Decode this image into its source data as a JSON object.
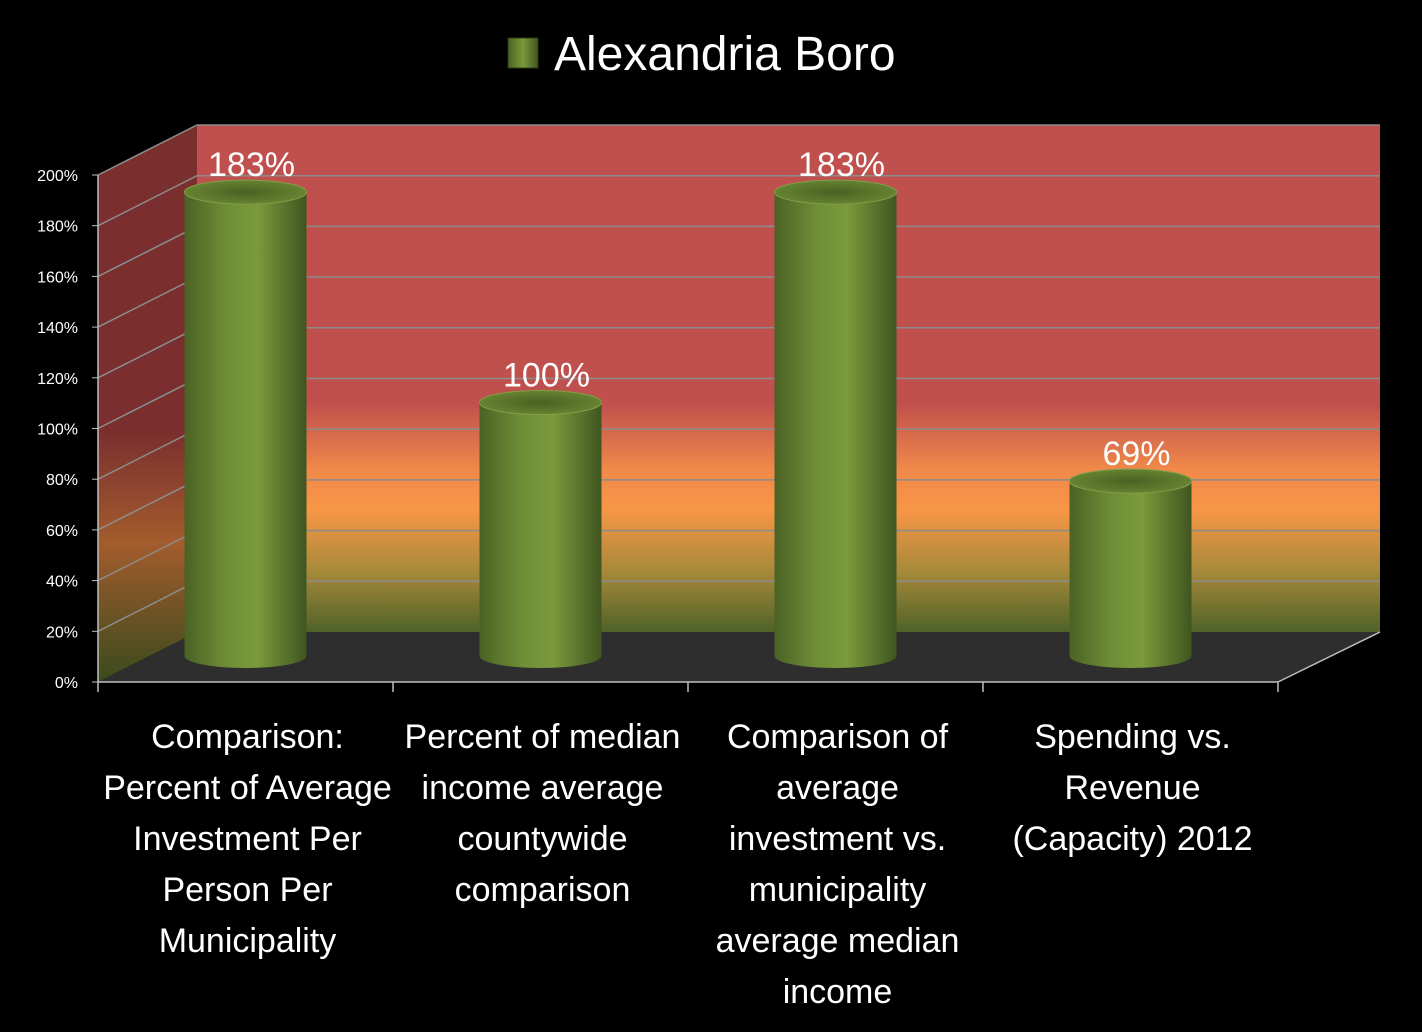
{
  "chart_data": {
    "type": "bar",
    "style": "3d-cylinder",
    "legend": {
      "position": "top",
      "entries": [
        "Alexandria Boro"
      ]
    },
    "series": [
      {
        "name": "Alexandria Boro",
        "color": "#6b8a35",
        "values": [
          183,
          100,
          183,
          69
        ]
      }
    ],
    "categories": [
      "Comparison: Percent of Average Investment Per Person Per Municipality",
      "Percent of median income average countywide comparison",
      "Comparison of average investment vs. municipality average median income",
      "Spending vs. Revenue (Capacity) 2012"
    ],
    "data_labels": [
      "183%",
      "100%",
      "183%",
      "69%"
    ],
    "y_ticks": [
      "0%",
      "20%",
      "40%",
      "60%",
      "80%",
      "100%",
      "120%",
      "140%",
      "160%",
      "180%",
      "200%"
    ],
    "ylim": [
      0,
      200
    ],
    "grid": true,
    "background_colors": {
      "top": "#c0504d",
      "middle": "#f79646",
      "bottom": "#4f6228",
      "floor": "#2e2e2e"
    }
  }
}
